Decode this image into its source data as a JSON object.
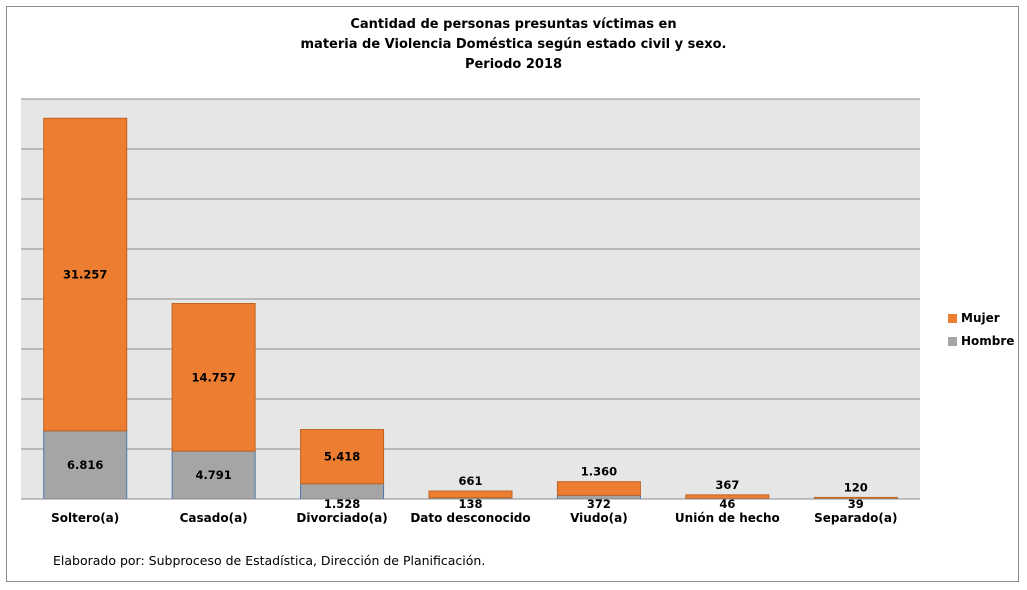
{
  "chart_data": {
    "type": "bar",
    "stacked": true,
    "title": [
      "Cantidad de personas presuntas víctimas en",
      "materia de Violencia Doméstica según estado civil y sexo.",
      "Periodo 2018"
    ],
    "categories": [
      "Soltero(a)",
      "Casado(a)",
      "Divorciado(a)",
      "Dato desconocido",
      "Viudo(a)",
      "Unión de hecho",
      "Separado(a)"
    ],
    "series": [
      {
        "name": "Hombre",
        "color": "#a5a5a5",
        "values": [
          6816,
          4791,
          1528,
          138,
          372,
          46,
          39
        ],
        "labels": [
          "6.816",
          "4.791",
          "1.528",
          "138",
          "372",
          "46",
          "39"
        ]
      },
      {
        "name": "Mujer",
        "color": "#ed7d31",
        "values": [
          31257,
          14757,
          5418,
          661,
          1360,
          367,
          120
        ],
        "labels": [
          "31.257",
          "14.757",
          "5.418",
          "661",
          "1.360",
          "367",
          "120"
        ]
      }
    ],
    "ylim": [
      0,
      40000
    ],
    "ytick_step": 5000,
    "grid": true,
    "legend": "right",
    "xlabel": "",
    "ylabel": ""
  },
  "source": "Elaborado por: Subproceso de Estadística, Dirección de Planificación."
}
